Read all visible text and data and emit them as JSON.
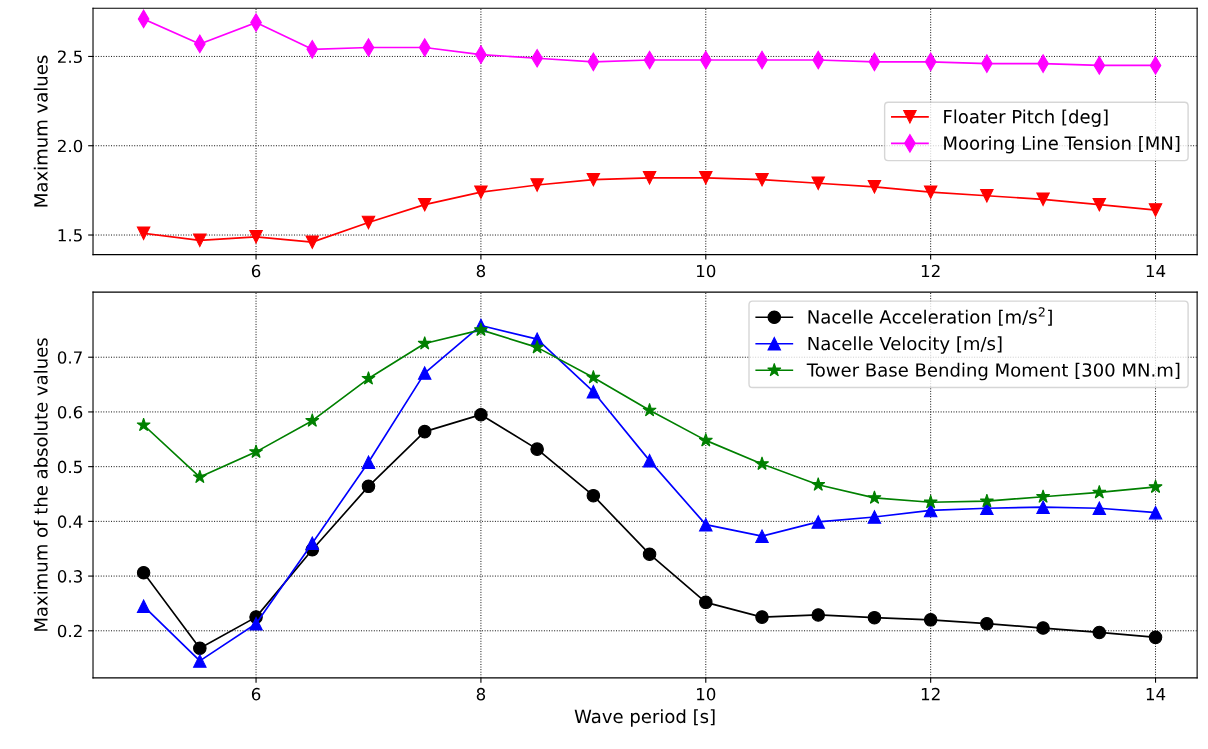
{
  "chart_data": [
    {
      "type": "line",
      "ylabel": "Maximum values",
      "x": [
        5,
        5.5,
        6,
        6.5,
        7,
        7.5,
        8,
        8.5,
        9,
        9.5,
        10,
        10.5,
        11,
        11.5,
        12,
        12.5,
        13,
        13.5,
        14
      ],
      "xlim": [
        4.55,
        14.37
      ],
      "xticks": [
        6,
        8,
        10,
        12,
        14
      ],
      "ylim": [
        1.39,
        2.77
      ],
      "yticks": [
        1.5,
        {
          "value": 2,
          "label": "2.0"
        },
        2.5
      ],
      "grid": true,
      "legend": "right",
      "series": [
        {
          "name": "Floater Pitch [deg]",
          "color": "#ff0000",
          "marker": "triangle_down",
          "values": [
            1.51,
            1.47,
            1.49,
            1.46,
            1.57,
            1.67,
            1.74,
            1.78,
            1.81,
            1.82,
            1.82,
            1.81,
            1.79,
            1.77,
            1.74,
            1.72,
            1.7,
            1.67,
            1.64
          ]
        },
        {
          "name": "Mooring Line Tension [MN]",
          "color": "#ff00ff",
          "marker": "diamond",
          "values": [
            2.71,
            2.57,
            2.69,
            2.54,
            2.55,
            2.55,
            2.51,
            2.49,
            2.47,
            2.48,
            2.48,
            2.48,
            2.48,
            2.47,
            2.47,
            2.46,
            2.46,
            2.45,
            2.45
          ]
        }
      ]
    },
    {
      "type": "line",
      "xlabel": "Wave period [s]",
      "ylabel": "Maximum of the absolute values",
      "x": [
        5,
        5.5,
        6,
        6.5,
        7,
        7.5,
        8,
        8.5,
        9,
        9.5,
        10,
        10.5,
        11,
        11.5,
        12,
        12.5,
        13,
        13.5,
        14
      ],
      "xlim": [
        4.55,
        14.37
      ],
      "xticks": [
        6,
        8,
        10,
        12,
        14
      ],
      "ylim": [
        0.114,
        0.819
      ],
      "yticks": [
        0.2,
        0.3,
        0.4,
        0.5,
        0.6,
        0.7
      ],
      "grid": true,
      "legend": "top right",
      "series": [
        {
          "name": "Nacelle Acceleration [m/s$^{2}$]",
          "color": "#000000",
          "marker": "circle",
          "values": [
            0.306,
            0.168,
            0.225,
            0.348,
            0.464,
            0.564,
            0.595,
            0.532,
            0.447,
            0.34,
            0.252,
            0.225,
            0.229,
            0.224,
            0.22,
            0.213,
            0.205,
            0.197,
            0.188
          ]
        },
        {
          "name": "Nacelle Velocity [m/s]",
          "color": "#0000ff",
          "marker": "triangle",
          "values": [
            0.245,
            0.145,
            0.213,
            0.36,
            0.508,
            0.671,
            0.758,
            0.733,
            0.637,
            0.511,
            0.394,
            0.373,
            0.399,
            0.408,
            0.42,
            0.424,
            0.426,
            0.424,
            0.416
          ]
        },
        {
          "name": "Tower Base Bending Moment [300 MN.m]",
          "color": "#008000",
          "marker": "star",
          "values": [
            0.576,
            0.481,
            0.527,
            0.584,
            0.661,
            0.725,
            0.75,
            0.718,
            0.663,
            0.603,
            0.548,
            0.505,
            0.467,
            0.443,
            0.435,
            0.437,
            0.445,
            0.453,
            0.463
          ]
        }
      ]
    }
  ]
}
